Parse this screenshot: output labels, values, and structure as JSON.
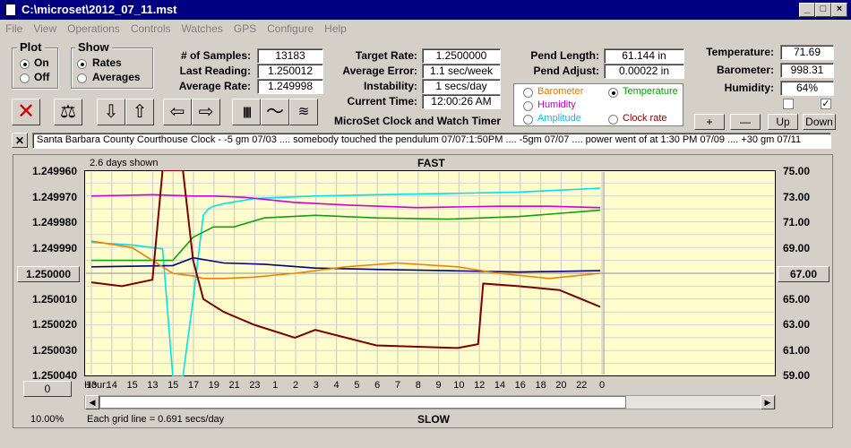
{
  "window": {
    "title": "C:\\microset\\2012_07_11.mst"
  },
  "menu": [
    "File",
    "View",
    "Operations",
    "Controls",
    "Watches",
    "GPS",
    "Configure",
    "Help"
  ],
  "plot": {
    "title": "Plot",
    "on": "On",
    "off": "Off",
    "selected": "On"
  },
  "show": {
    "title": "Show",
    "rates": "Rates",
    "averages": "Averages",
    "selected": "Rates"
  },
  "stats": {
    "samples_label": "# of Samples:",
    "samples": "13183",
    "last_label": "Last Reading:",
    "last": "1.250012",
    "avg_label": "Average Rate:",
    "avg": "1.249998"
  },
  "rates": {
    "target_label": "Target Rate:",
    "target": "1.2500000",
    "error_label": "Average Error:",
    "error": "1.1 sec/week",
    "instab_label": "Instability:",
    "instab": "1 secs/day",
    "time_label": "Current Time:",
    "time": "12:00:26 AM"
  },
  "pend": {
    "length_label": "Pend Length:",
    "length": "61.144 in",
    "adjust_label": "Pend Adjust:",
    "adjust": "0.00022 in"
  },
  "env": {
    "temp_label": "Temperature:",
    "temp": "71.69",
    "baro_label": "Barometer:",
    "baro": "998.31",
    "hum_label": "Humidity:",
    "hum": "64%"
  },
  "app_label": "MicroSet Clock and Watch Timer",
  "sensor_options": [
    {
      "label": "Barometer",
      "color": "#e07800",
      "selected": false
    },
    {
      "label": "Temperature",
      "color": "#00a000",
      "selected": true
    },
    {
      "label": "Humidity",
      "color": "#c000c0",
      "selected": false
    },
    {
      "label": "Amplitude",
      "color": "#00c0e0",
      "selected": false
    },
    {
      "label": "Clock rate",
      "color": "#800000",
      "selected": false
    }
  ],
  "adjust_buttons": {
    "plus": "+",
    "minus": "—",
    "up": "Up",
    "down": "Down"
  },
  "notes": "Santa Barbara County Courthouse Clock -  -5 gm 07/03  .... somebody touched the pendulum 07/07:1:50PM  ....  -5gm 07/07  ....  power went of at 1:30 PM 07/09 ....  +30 gm 07/11",
  "chart": {
    "days_shown": "2.6 days shown",
    "top_label": "FAST",
    "bottom_label": "SLOW",
    "grid_note": "Each grid line = 0.691 secs/day",
    "zoom": "10.00%",
    "hour_label": "Hour:",
    "center_left": "1.250000",
    "center_right": "67.00",
    "offset_button": "0"
  },
  "chart_data": {
    "type": "line",
    "y_left_ticks": [
      "1.249960",
      "1.249970",
      "1.249980",
      "1.249990",
      "1.250000",
      "1.250010",
      "1.250020",
      "1.250030",
      "1.250040"
    ],
    "y_right_ticks": [
      "75.00",
      "73.00",
      "71.00",
      "69.00",
      "67.00",
      "65.00",
      "63.00",
      "61.00",
      "59.00"
    ],
    "x_ticks": [
      "13",
      "14",
      "15",
      "13",
      "15",
      "17",
      "19",
      "21",
      "23",
      "1",
      "2",
      "3",
      "4",
      "5",
      "6",
      "7",
      "8",
      "9",
      "10",
      "12",
      "14",
      "16",
      "18",
      "20",
      "22",
      "0"
    ],
    "ylim_left": [
      1.24996,
      1.25004
    ],
    "ylim_right": [
      59,
      75
    ],
    "x_range": [
      0,
      50
    ],
    "series": [
      {
        "color": "#00e0f0",
        "x": [
          0,
          4,
          7,
          8,
          9,
          10,
          11,
          11.5,
          12,
          13,
          16,
          22,
          28,
          35,
          42,
          50
        ],
        "y": [
          69.4,
          69.2,
          68.9,
          59,
          59,
          65,
          71.5,
          72.0,
          72.2,
          72.4,
          72.8,
          73.0,
          73.1,
          73.2,
          73.3,
          73.6
        ]
      },
      {
        "color": "#d000d0",
        "x": [
          0,
          6,
          10,
          12,
          15,
          20,
          25,
          32,
          40,
          45,
          50
        ],
        "y": [
          73.0,
          73.1,
          73.0,
          73.0,
          72.9,
          72.5,
          72.3,
          72.1,
          72.2,
          72.2,
          72.1
        ]
      },
      {
        "color": "#10a010",
        "x": [
          0,
          8,
          10,
          12,
          14,
          17,
          22,
          28,
          35,
          42,
          50
        ],
        "y": [
          68.0,
          68.0,
          69.8,
          70.6,
          70.6,
          71.3,
          71.5,
          71.3,
          71.2,
          71.4,
          71.9
        ]
      },
      {
        "color": "#000080",
        "x": [
          0,
          8,
          10,
          13,
          17,
          22,
          28,
          35,
          42,
          50
        ],
        "y": [
          67.5,
          67.6,
          68.2,
          67.8,
          67.7,
          67.4,
          67.3,
          67.2,
          67.1,
          67.2
        ]
      },
      {
        "color": "#f08000",
        "x": [
          0,
          4,
          8,
          10,
          11,
          13,
          16,
          20,
          25,
          30,
          36,
          40,
          45,
          50
        ],
        "y": [
          69.5,
          69.0,
          67.0,
          66.8,
          66.6,
          66.6,
          66.7,
          67.0,
          67.5,
          67.8,
          67.5,
          67.0,
          66.6,
          67.0
        ]
      },
      {
        "color": "#7a0000",
        "x": [
          0,
          3,
          6,
          7,
          8,
          9,
          10,
          11,
          13,
          16,
          20,
          22,
          28,
          36,
          38,
          38.5,
          42,
          46,
          50
        ],
        "y": [
          66.3,
          66.0,
          66.5,
          75,
          75,
          75,
          68,
          65,
          64,
          63,
          62,
          62.6,
          61.4,
          61.2,
          61.5,
          66.2,
          66.0,
          65.7,
          64.4
        ]
      }
    ]
  }
}
